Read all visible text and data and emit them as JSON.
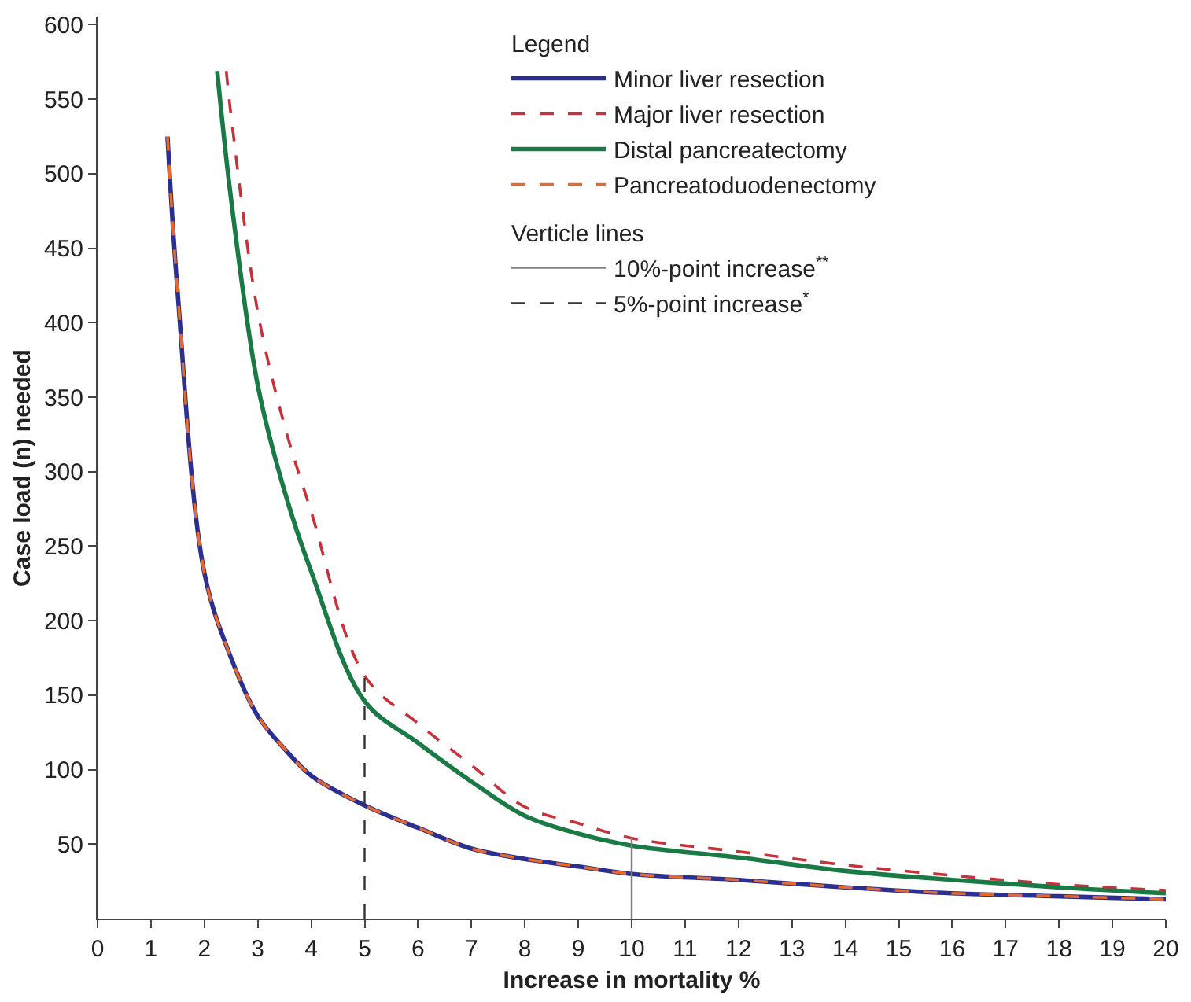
{
  "chart_data": {
    "type": "line",
    "xlabel": "Increase in mortality %",
    "ylabel": "Case load (n) needed",
    "legend_title": "Legend",
    "annotations": [
      "Verticle lines"
    ],
    "xlim": [
      0,
      20
    ],
    "xticks": [
      0,
      1,
      2,
      3,
      4,
      5,
      6,
      7,
      8,
      9,
      10,
      11,
      12,
      13,
      14,
      15,
      16,
      17,
      18,
      19,
      20
    ],
    "ylim": [
      0,
      605
    ],
    "yticks": [
      50,
      100,
      150,
      200,
      250,
      300,
      350,
      400,
      450,
      500,
      550,
      600
    ],
    "legend": "top",
    "marker": "none",
    "series": [
      {
        "name": "Minor liver resection",
        "color": "#2b2f8f",
        "line_style": "solid",
        "x": [
          1.31,
          1.5,
          2,
          2.5,
          3,
          3.5,
          4,
          5,
          6,
          7,
          8,
          9,
          10,
          12,
          14,
          16,
          18,
          20
        ],
        "values": [
          525,
          420,
          232,
          175,
          136,
          114,
          96,
          76,
          61,
          47,
          40,
          35,
          30,
          26,
          21,
          17,
          15,
          13
        ]
      },
      {
        "name": "Major liver resection",
        "color": "#c8303a",
        "line_style": "dashed",
        "x": [
          2.41,
          2.5,
          3,
          3.5,
          4,
          5,
          6,
          7,
          8,
          9,
          10,
          12,
          14,
          16,
          18,
          20
        ],
        "values": [
          569,
          539,
          407,
          331,
          273,
          163,
          131,
          103,
          75,
          64,
          54,
          45,
          36,
          29,
          23,
          19
        ]
      },
      {
        "name": "Distal pancreatectomy",
        "color": "#1a7a45",
        "line_style": "solid",
        "x": [
          2.24,
          2.5,
          3,
          3.5,
          4,
          5,
          6,
          7,
          8,
          9,
          10,
          12,
          14,
          16,
          18,
          20
        ],
        "values": [
          569,
          483,
          358,
          287,
          233,
          146,
          118,
          92,
          69,
          57,
          49,
          41,
          32,
          26,
          21,
          17
        ]
      },
      {
        "name": "Pancreatoduodenectomy",
        "color": "#e8692c",
        "line_style": "dashed",
        "x": [
          1.31,
          1.5,
          2,
          2.5,
          3,
          3.5,
          4,
          5,
          6,
          7,
          8,
          9,
          10,
          12,
          14,
          16,
          18,
          20
        ],
        "values": [
          525,
          420,
          232,
          175,
          136,
          114,
          96,
          76,
          61,
          47,
          40,
          35,
          30,
          26,
          21,
          17,
          15,
          13
        ]
      }
    ],
    "ref_lines": [
      {
        "axis": "x",
        "value": 10,
        "label": "10%-point increase$^{**}$",
        "color": "#7f7f7f",
        "line_style": "solid"
      },
      {
        "axis": "x",
        "value": 5,
        "label": "5%-point increase$^{*}$",
        "color": "#333333",
        "line_style": "dashed"
      }
    ]
  }
}
